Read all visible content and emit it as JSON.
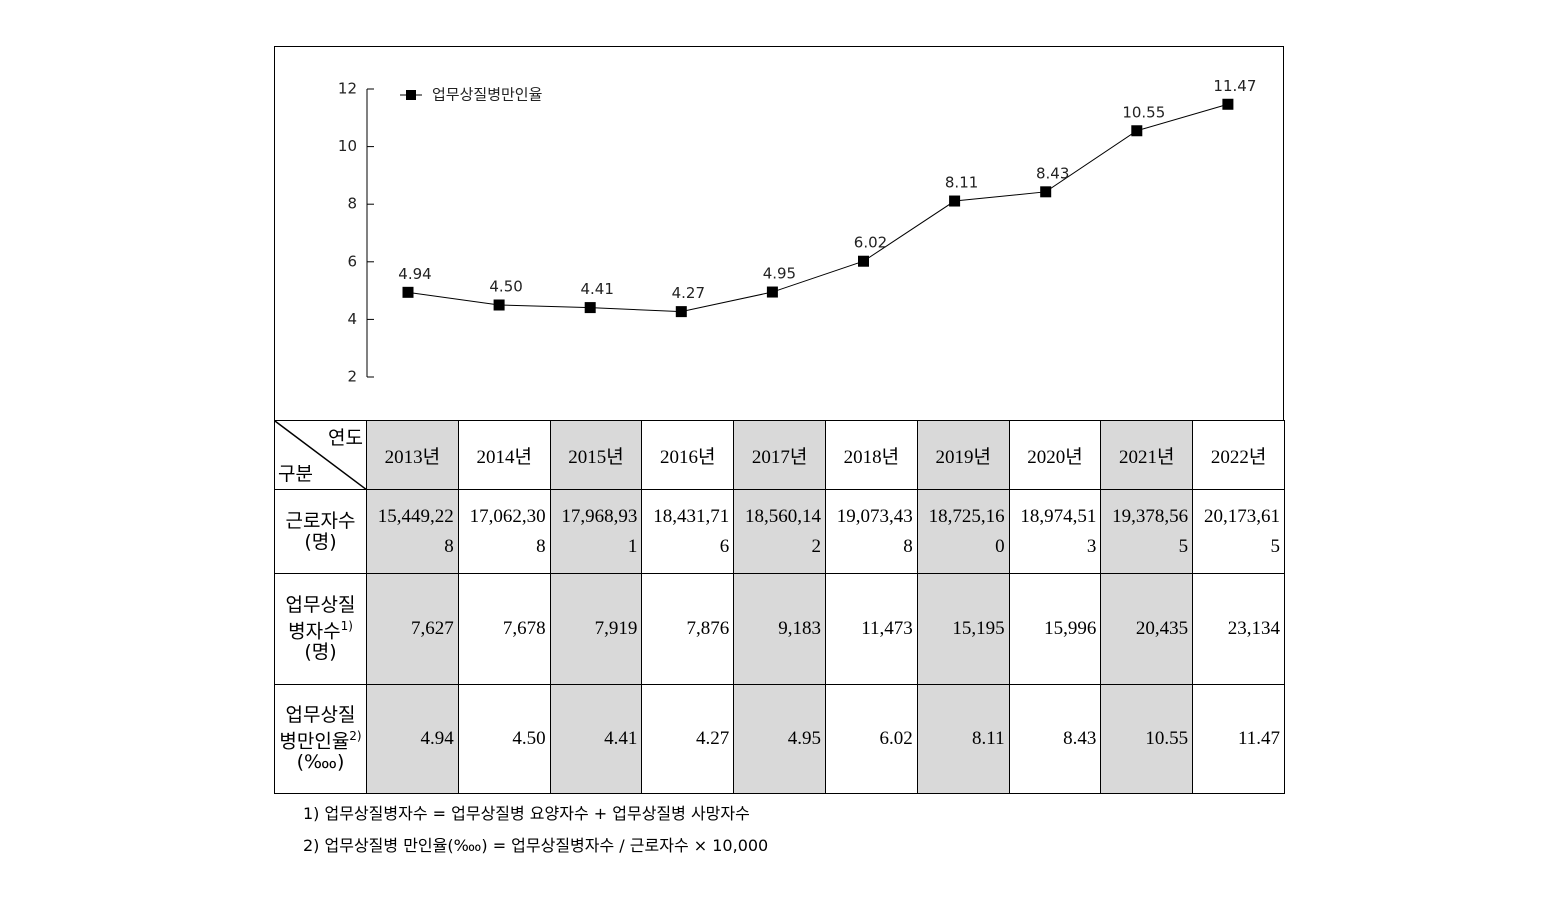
{
  "chart_data": {
    "type": "line",
    "categories": [
      null,
      null,
      null,
      null,
      null,
      null,
      null,
      null,
      null,
      null
    ],
    "series": [
      {
        "name": "업무상질병만인율",
        "color": "#000000",
        "values": [
          4.94,
          4.5,
          4.41,
          4.27,
          4.95,
          6.02,
          8.11,
          8.43,
          10.55,
          11.47
        ],
        "value_labels": [
          "4.94",
          "4.50",
          "4.41",
          "4.27",
          "4.95",
          "6.02",
          "8.11",
          "8.43",
          "10.55",
          "11.47"
        ]
      }
    ],
    "ylim": [
      2,
      12
    ],
    "yticks": [
      2,
      4,
      6,
      8,
      10,
      12
    ],
    "legend": "top-left",
    "grid": false
  },
  "table": {
    "corner": {
      "top": "연도",
      "bottom": "구분"
    },
    "columns": [
      "2013년",
      "2014년",
      "2015년",
      "2016년",
      "2017년",
      "2018년",
      "2019년",
      "2020년",
      "2021년",
      "2022년"
    ],
    "rows": [
      {
        "label": "근로자수",
        "unit": "(명)",
        "cells": [
          "15,449,228",
          "17,062,308",
          "17,968,931",
          "18,431,716",
          "18,560,142",
          "19,073,438",
          "18,725,160",
          "18,974,513",
          "19,378,565",
          "20,173,615"
        ]
      },
      {
        "label": "업무상질병자수",
        "note": "1)",
        "unit": "(명)",
        "cells": [
          "7,627",
          "7,678",
          "7,919",
          "7,876",
          "9,183",
          "11,473",
          "15,195",
          "15,996",
          "20,435",
          "23,134"
        ]
      },
      {
        "label": "업무상질병만인율",
        "note": "2)",
        "unit": "(‱)",
        "cells": [
          "4.94",
          "4.50",
          "4.41",
          "4.27",
          "4.95",
          "6.02",
          "8.11",
          "8.43",
          "10.55",
          "11.47"
        ]
      }
    ]
  },
  "footnotes": [
    "1) 업무상질병자수 = 업무상질병 요양자수 + 업무상질병 사망자수",
    "2) 업무상질병 만인율(‱) = 업무상질병자수 / 근로자수 × 10,000"
  ]
}
